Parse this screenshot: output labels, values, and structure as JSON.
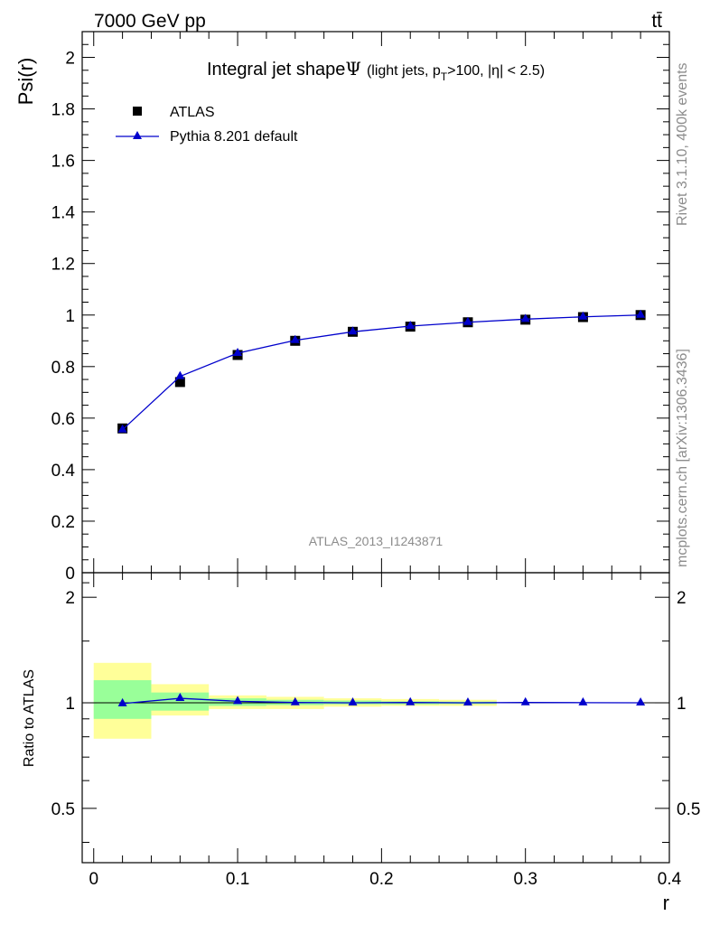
{
  "header": {
    "energy_label": "7000 GeV pp",
    "process_label": "tt̄"
  },
  "side_labels": {
    "rivet": "Rivet 3.1.10,  400k events",
    "mcplots": "mcplots.cern.ch [arXiv:1306.3436]"
  },
  "chart_data": [
    {
      "type": "scatter",
      "title_main": "Integral jet shape",
      "title_symbol": "Ψ",
      "title_sub_open": "(light jets, p",
      "title_sub_sub": "T",
      "title_sub_close": ">100, |η| < 2.5)",
      "xlabel": "r",
      "ylabel": "Psi(r)",
      "xlim": [
        -0.008,
        0.4
      ],
      "ylim": [
        0,
        2.1
      ],
      "x_ticks": [
        0,
        0.1,
        0.2,
        0.3,
        0.4
      ],
      "x_tick_labels": [
        "0",
        "0.1",
        "0.2",
        "0.3",
        "0.4"
      ],
      "y_ticks": [
        0,
        0.2,
        0.4,
        0.6,
        0.8,
        1,
        1.2,
        1.4,
        1.6,
        1.8,
        2
      ],
      "y_tick_labels": [
        "0",
        "0.2",
        "0.4",
        "0.6",
        "0.8",
        "1",
        "1.2",
        "1.4",
        "1.6",
        "1.8",
        "2"
      ],
      "watermark": "ATLAS_2013_I1243871",
      "legend": [
        {
          "name": "ATLAS",
          "marker": "square",
          "color": "#000000"
        },
        {
          "name": "Pythia 8.201 default",
          "marker": "triangle",
          "color": "#0000cc"
        }
      ],
      "x": [
        0.02,
        0.06,
        0.1,
        0.14,
        0.18,
        0.22,
        0.26,
        0.3,
        0.34,
        0.38
      ],
      "series": [
        {
          "name": "ATLAS",
          "values": [
            0.56,
            0.74,
            0.845,
            0.9,
            0.935,
            0.955,
            0.972,
            0.982,
            0.992,
            1.0
          ]
        },
        {
          "name": "Pythia 8.201 default",
          "values": [
            0.555,
            0.762,
            0.852,
            0.902,
            0.935,
            0.957,
            0.972,
            0.984,
            0.993,
            1.0
          ]
        }
      ]
    },
    {
      "type": "line",
      "ylabel": "Ratio to ATLAS",
      "xlim": [
        -0.008,
        0.4
      ],
      "ylim": [
        0.35,
        2.35
      ],
      "log_y": true,
      "y_tick_labels": [
        "0.5",
        "1",
        "2"
      ],
      "y_ticks": [
        0.5,
        1,
        2
      ],
      "x": [
        0.02,
        0.06,
        0.1,
        0.14,
        0.18,
        0.22,
        0.26,
        0.3,
        0.34,
        0.38
      ],
      "bands": [
        {
          "x0": 0.0,
          "x1": 0.04,
          "yellow": [
            0.79,
            1.3
          ],
          "green": [
            0.9,
            1.16
          ]
        },
        {
          "x0": 0.04,
          "x1": 0.08,
          "yellow": [
            0.92,
            1.13
          ],
          "green": [
            0.95,
            1.07
          ]
        },
        {
          "x0": 0.08,
          "x1": 0.12,
          "yellow": [
            0.96,
            1.05
          ],
          "green": [
            0.98,
            1.03
          ]
        },
        {
          "x0": 0.12,
          "x1": 0.16,
          "yellow": [
            0.96,
            1.04
          ],
          "green": [
            0.985,
            1.02
          ]
        },
        {
          "x0": 0.16,
          "x1": 0.2,
          "yellow": [
            0.975,
            1.03
          ],
          "green": [
            0.99,
            1.015
          ]
        },
        {
          "x0": 0.2,
          "x1": 0.24,
          "yellow": [
            0.98,
            1.025
          ],
          "green": [
            0.99,
            1.01
          ]
        },
        {
          "x0": 0.24,
          "x1": 0.28,
          "yellow": [
            0.98,
            1.02
          ],
          "green": [
            0.992,
            1.008
          ]
        }
      ],
      "series": [
        {
          "name": "Pythia 8.201 default",
          "values": [
            0.995,
            1.03,
            1.01,
            1.002,
            1.0,
            1.002,
            1.0,
            1.002,
            1.001,
            1.0
          ]
        }
      ]
    }
  ]
}
